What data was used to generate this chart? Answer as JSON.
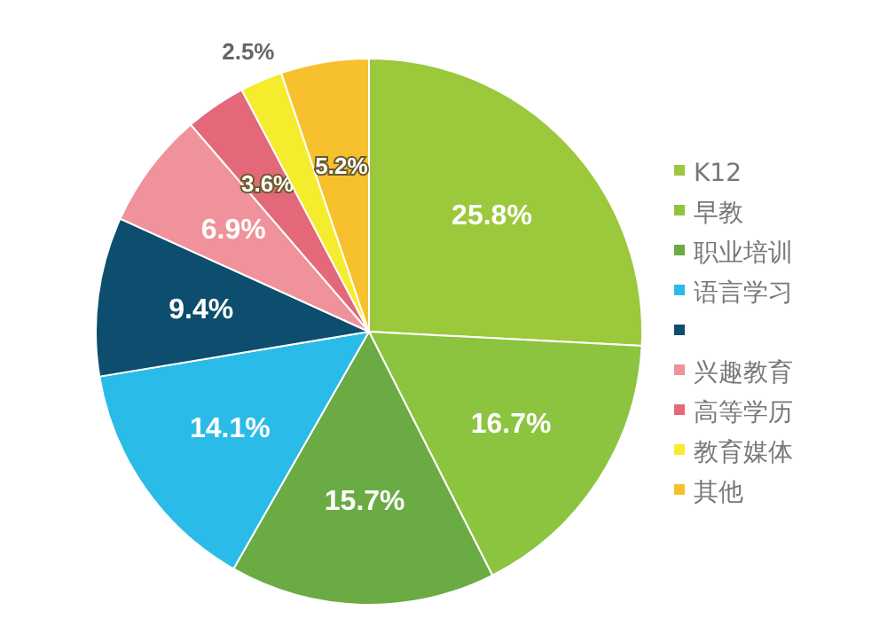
{
  "chart_data": {
    "type": "pie",
    "categories": [
      "K12",
      "早教",
      "职业培训",
      "语言学习",
      null,
      "兴趣教育",
      "高等学历",
      "教育媒体",
      "其他"
    ],
    "values": [
      25.8,
      16.7,
      15.7,
      14.1,
      9.4,
      6.9,
      3.6,
      2.5,
      5.2
    ],
    "colors": [
      "#9cc83c",
      "#8dc43f",
      "#6aab44",
      "#2bbbe8",
      "#0d4d6e",
      "#f0929b",
      "#e3697a",
      "#f6ec2e",
      "#f6c12c"
    ],
    "value_labels": [
      "25.8%",
      "16.7%",
      "15.7%",
      "14.1%",
      "9.4%",
      "6.9%",
      "3.6%",
      "2.5%",
      "5.2%"
    ],
    "legend": "right"
  }
}
